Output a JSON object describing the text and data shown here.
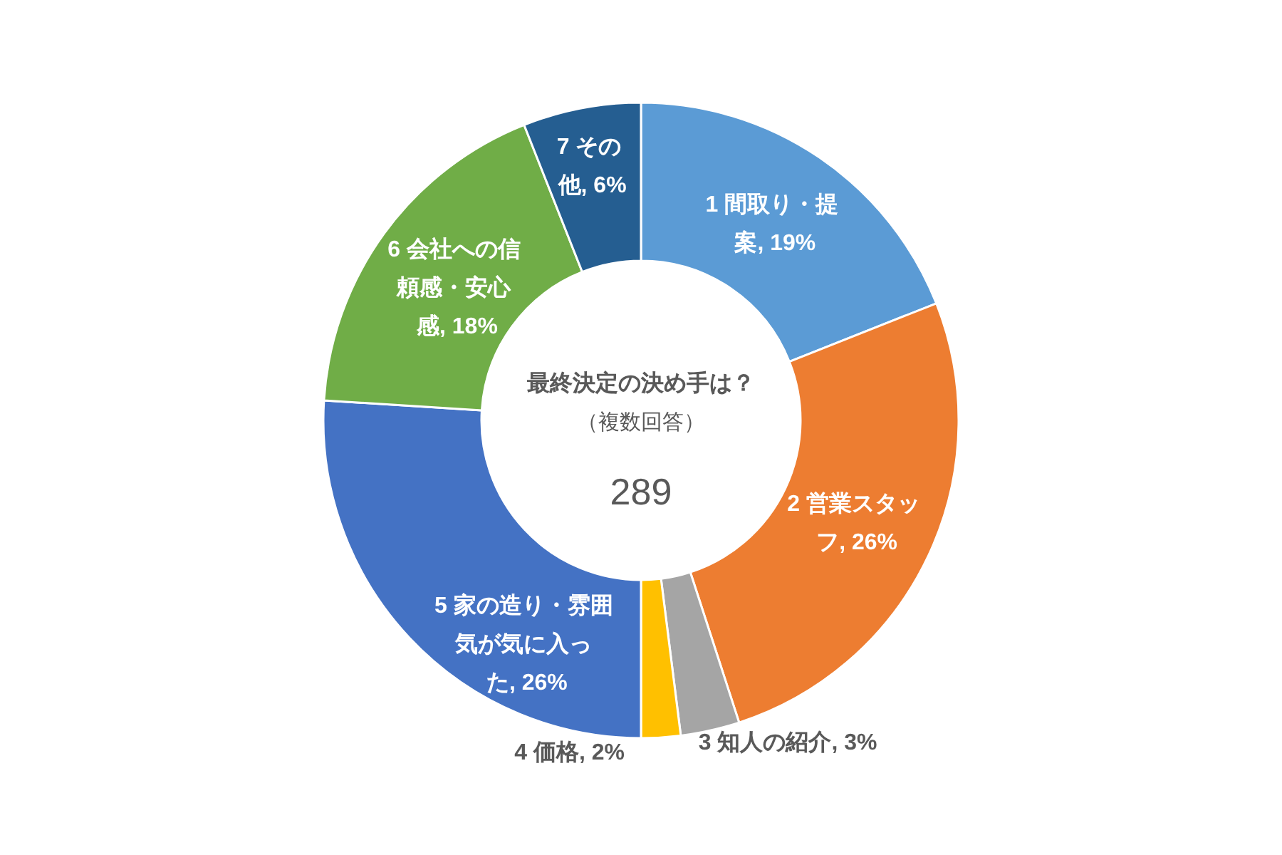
{
  "chart_data": {
    "type": "donut",
    "title": "最終決定の決め手は？",
    "subtitle": "（複数回答）",
    "annotations": [
      "289"
    ],
    "categories": [
      "1 間取り・提案",
      "2 営業スタッフ",
      "3 知人の紹介",
      "4 価格",
      "5 家の造り・雰囲気が気に入った",
      "6 会社への信頼感・安心感",
      "7 その他"
    ],
    "values": [
      19,
      26,
      3,
      2,
      26,
      18,
      6
    ],
    "colors": [
      "#5b9bd5",
      "#ed7d31",
      "#a5a5a5",
      "#ffc000",
      "#4472c4",
      "#70ad47",
      "#255e91"
    ],
    "value_labels": [
      "19%",
      "26%",
      "3%",
      "2%",
      "26%",
      "18%",
      "6%"
    ]
  }
}
